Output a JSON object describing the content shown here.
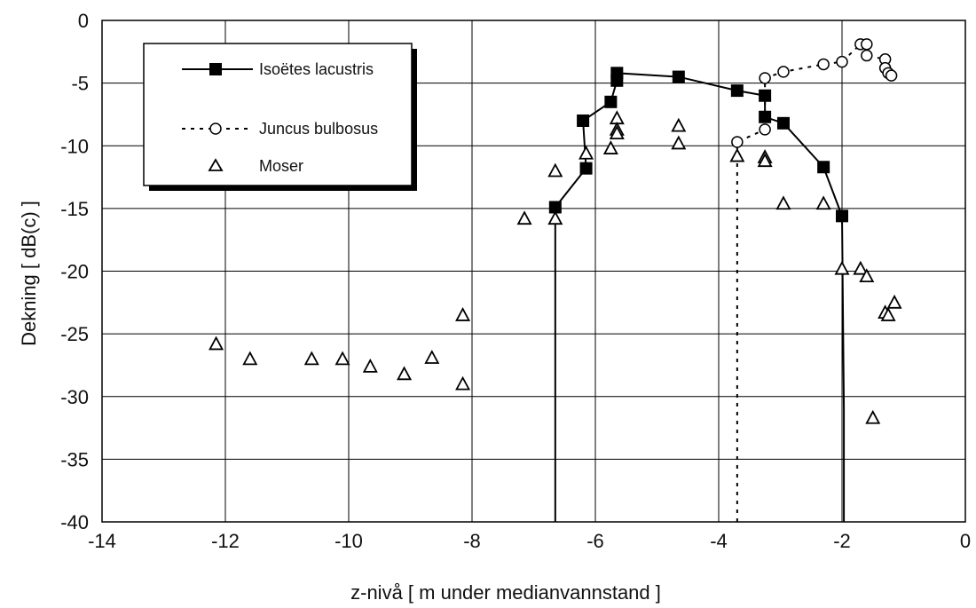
{
  "chart_data": {
    "type": "scatter",
    "xlabel": "z-nivå [ m under medianvannstand ]",
    "ylabel": "Dekning [ dB(c) ]",
    "xlim": [
      -14,
      0
    ],
    "ylim": [
      -40,
      0
    ],
    "xticks": [
      -14,
      -12,
      -10,
      -8,
      -6,
      -4,
      -2,
      0
    ],
    "yticks": [
      0,
      -5,
      -10,
      -15,
      -20,
      -25,
      -30,
      -35,
      -40
    ],
    "grid": true,
    "legend_position": "top-left",
    "series": [
      {
        "name": "Isoëtes lacustris",
        "style": "line-square",
        "points": [
          [
            -6.65,
            -40
          ],
          [
            -6.65,
            -14.9
          ],
          [
            -6.15,
            -11.8
          ],
          [
            -6.2,
            -8.0
          ],
          [
            -5.75,
            -6.5
          ],
          [
            -5.65,
            -4.8
          ],
          [
            -5.65,
            -4.2
          ],
          [
            -4.65,
            -4.5
          ],
          [
            -3.7,
            -5.6
          ],
          [
            -3.25,
            -6.0
          ],
          [
            -3.25,
            -7.7
          ],
          [
            -2.95,
            -8.2
          ],
          [
            -2.3,
            -11.7
          ],
          [
            -2.0,
            -15.6
          ],
          [
            -1.97,
            -31.0
          ],
          [
            -1.97,
            -40
          ]
        ]
      },
      {
        "name": "Juncus bulbosus",
        "style": "dotted-circle",
        "points": [
          [
            -3.7,
            -40
          ],
          [
            -3.7,
            -9.7
          ],
          [
            -3.25,
            -8.7
          ],
          [
            -3.25,
            -4.6
          ],
          [
            -2.95,
            -4.1
          ],
          [
            -2.3,
            -3.5
          ],
          [
            -2.0,
            -3.3
          ],
          [
            -1.7,
            -1.9
          ],
          [
            -1.6,
            -1.9
          ],
          [
            -1.6,
            -2.8
          ],
          [
            -1.3,
            -3.1
          ],
          [
            -1.3,
            -3.8
          ],
          [
            -1.25,
            -4.2
          ],
          [
            -1.2,
            -4.4
          ]
        ]
      },
      {
        "name": "Moser",
        "style": "triangle",
        "points": [
          [
            -12.15,
            -25.8
          ],
          [
            -11.6,
            -27.0
          ],
          [
            -10.6,
            -27.0
          ],
          [
            -10.1,
            -27.0
          ],
          [
            -9.65,
            -27.6
          ],
          [
            -9.1,
            -28.2
          ],
          [
            -8.65,
            -26.9
          ],
          [
            -8.15,
            -23.5
          ],
          [
            -8.15,
            -29.0
          ],
          [
            -7.15,
            -15.8
          ],
          [
            -6.65,
            -12.0
          ],
          [
            -6.65,
            -15.8
          ],
          [
            -6.15,
            -10.6
          ],
          [
            -5.75,
            -10.2
          ],
          [
            -5.65,
            -7.8
          ],
          [
            -5.65,
            -8.7
          ],
          [
            -5.65,
            -9.0
          ],
          [
            -4.65,
            -8.4
          ],
          [
            -4.65,
            -9.8
          ],
          [
            -3.7,
            -10.8
          ],
          [
            -3.25,
            -10.9
          ],
          [
            -3.25,
            -11.2
          ],
          [
            -2.95,
            -14.6
          ],
          [
            -2.3,
            -14.6
          ],
          [
            -2.0,
            -19.8
          ],
          [
            -1.7,
            -19.8
          ],
          [
            -1.6,
            -20.4
          ],
          [
            -1.5,
            -31.7
          ],
          [
            -1.3,
            -23.3
          ],
          [
            -1.25,
            -23.5
          ],
          [
            -1.15,
            -22.5
          ]
        ]
      }
    ]
  }
}
